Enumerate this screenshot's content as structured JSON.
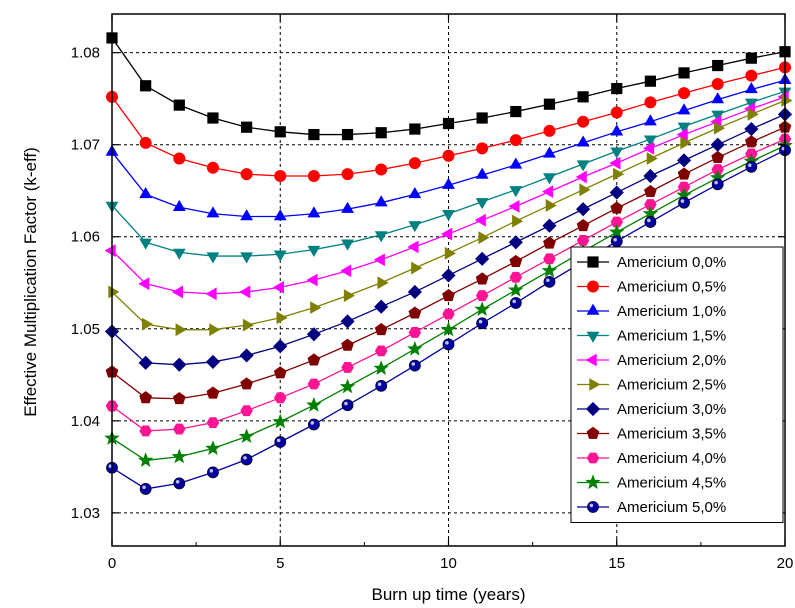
{
  "chart_data": {
    "type": "line",
    "xlabel": "Burn up time (years)",
    "ylabel": "Effective Multiplication Factor (k-eff)",
    "xlim": [
      0,
      20
    ],
    "ylim": [
      1.0264,
      1.0842
    ],
    "x_ticks": [
      0,
      5,
      10,
      15,
      20
    ],
    "x_tick_labels": [
      "0",
      "5",
      "10",
      "15",
      "20"
    ],
    "y_ticks": [
      1.03,
      1.04,
      1.05,
      1.06,
      1.07,
      1.08
    ],
    "y_tick_labels": [
      "1.03",
      "1.04",
      "1.05",
      "1.06",
      "1.07",
      "1.08"
    ],
    "grid": true,
    "grid_style": "dashed",
    "legend_position": "right",
    "x": [
      0,
      1,
      2,
      3,
      4,
      5,
      6,
      7,
      8,
      9,
      10,
      11,
      12,
      13,
      14,
      15,
      16,
      17,
      18,
      19,
      20
    ],
    "series": [
      {
        "name": "Americium 0,0%",
        "color": "#000000",
        "marker": "square",
        "values": [
          1.0816,
          1.0764,
          1.0743,
          1.0729,
          1.0719,
          1.0714,
          1.0711,
          1.0711,
          1.0713,
          1.0717,
          1.0723,
          1.0729,
          1.0736,
          1.0744,
          1.0752,
          1.0761,
          1.0769,
          1.0778,
          1.0786,
          1.0794,
          1.0801
        ]
      },
      {
        "name": "Americium 0,5%",
        "color": "#ff0000",
        "marker": "circle",
        "values": [
          1.0752,
          1.0702,
          1.0685,
          1.0675,
          1.0668,
          1.0666,
          1.0666,
          1.0668,
          1.0673,
          1.068,
          1.0688,
          1.0696,
          1.0705,
          1.0715,
          1.0725,
          1.0735,
          1.0746,
          1.0756,
          1.0766,
          1.0775,
          1.0784
        ]
      },
      {
        "name": "Americium 1,0%",
        "color": "#0000ff",
        "marker": "triangle-up",
        "values": [
          1.0692,
          1.0646,
          1.0632,
          1.0625,
          1.0622,
          1.0622,
          1.0625,
          1.063,
          1.0637,
          1.0646,
          1.0656,
          1.0667,
          1.0678,
          1.069,
          1.0702,
          1.0714,
          1.0725,
          1.0737,
          1.0749,
          1.076,
          1.077
        ]
      },
      {
        "name": "Americium 1,5%",
        "color": "#008080",
        "marker": "triangle-down",
        "values": [
          1.0634,
          1.0594,
          1.0583,
          1.0579,
          1.0579,
          1.0581,
          1.0586,
          1.0593,
          1.0602,
          1.0613,
          1.0625,
          1.0638,
          1.0651,
          1.0665,
          1.0679,
          1.0693,
          1.0706,
          1.072,
          1.0733,
          1.0746,
          1.0758
        ]
      },
      {
        "name": "Americium 2,0%",
        "color": "#ff00ff",
        "marker": "triangle-left",
        "values": [
          1.0585,
          1.0549,
          1.054,
          1.0538,
          1.054,
          1.0545,
          1.0553,
          1.0563,
          1.0575,
          1.0589,
          1.0603,
          1.0618,
          1.0633,
          1.0649,
          1.0665,
          1.068,
          1.0696,
          1.0711,
          1.0725,
          1.0739,
          1.0752
        ]
      },
      {
        "name": "Americium 2,5%",
        "color": "#808000",
        "marker": "triangle-right",
        "values": [
          1.054,
          1.0505,
          1.0499,
          1.0499,
          1.0504,
          1.0512,
          1.0523,
          1.0536,
          1.055,
          1.0566,
          1.0582,
          1.0599,
          1.0617,
          1.0634,
          1.0651,
          1.0668,
          1.0685,
          1.0702,
          1.0718,
          1.0733,
          1.0748
        ]
      },
      {
        "name": "Americium 3,0%",
        "color": "#000080",
        "marker": "diamond",
        "values": [
          1.0497,
          1.0463,
          1.0461,
          1.0464,
          1.0471,
          1.0481,
          1.0494,
          1.0508,
          1.0524,
          1.054,
          1.0558,
          1.0576,
          1.0594,
          1.0612,
          1.063,
          1.0648,
          1.0666,
          1.0683,
          1.07,
          1.0717,
          1.0733
        ]
      },
      {
        "name": "Americium 3,5%",
        "color": "#800000",
        "marker": "pentagon",
        "values": [
          1.0453,
          1.0425,
          1.0424,
          1.043,
          1.044,
          1.0452,
          1.0466,
          1.0482,
          1.0499,
          1.0517,
          1.0536,
          1.0554,
          1.0573,
          1.0593,
          1.0612,
          1.0631,
          1.0649,
          1.0668,
          1.0686,
          1.0703,
          1.0719
        ]
      },
      {
        "name": "Americium 4,0%",
        "color": "#ff1493",
        "marker": "hexagon",
        "values": [
          1.0416,
          1.0389,
          1.0391,
          1.0398,
          1.0411,
          1.0425,
          1.044,
          1.0458,
          1.0476,
          1.0496,
          1.0516,
          1.0536,
          1.0556,
          1.0576,
          1.0596,
          1.0616,
          1.0635,
          1.0654,
          1.0673,
          1.069,
          1.0706
        ]
      },
      {
        "name": "Americium 4,5%",
        "color": "#008000",
        "marker": "star",
        "values": [
          1.0381,
          1.0357,
          1.0361,
          1.037,
          1.0383,
          1.0399,
          1.0417,
          1.0437,
          1.0457,
          1.0478,
          1.0499,
          1.0521,
          1.0542,
          1.0563,
          1.0584,
          1.0605,
          1.0625,
          1.0645,
          1.0664,
          1.0682,
          1.0699
        ]
      },
      {
        "name": "Americium 5,0%",
        "color": "#0000a0",
        "marker": "sphere",
        "values": [
          1.0349,
          1.0326,
          1.0332,
          1.0344,
          1.0358,
          1.0377,
          1.0396,
          1.0417,
          1.0438,
          1.046,
          1.0483,
          1.0506,
          1.0528,
          1.0551,
          1.0573,
          1.0595,
          1.0616,
          1.0637,
          1.0657,
          1.0676,
          1.0694
        ]
      }
    ]
  }
}
